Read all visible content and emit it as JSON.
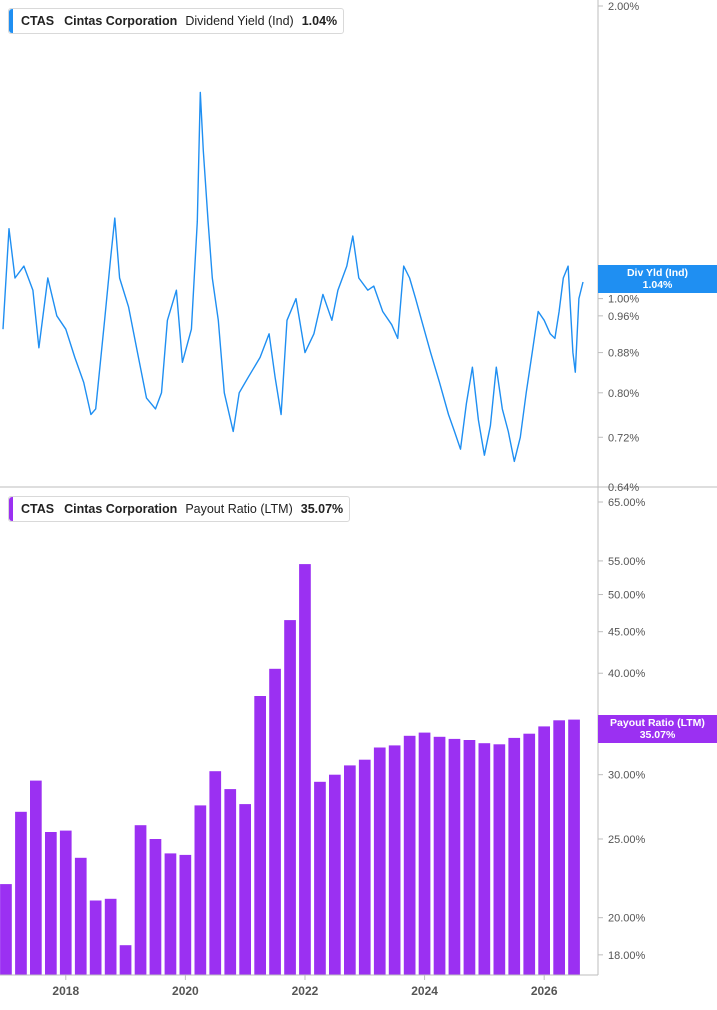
{
  "colors": {
    "line": "#1f8ff2",
    "bar": "#9b30f2",
    "axis": "#bdbdbd",
    "tick_text": "#555555",
    "flag_blue": "#1f8ff2",
    "flag_purple": "#9b30f2"
  },
  "top_panel": {
    "ticker": "CTAS",
    "company": "Cintas Corporation",
    "metric": "Dividend Yield (Ind)",
    "value": "1.04%",
    "flag_line1": "Div Yld (Ind)",
    "flag_line2": "1.04%"
  },
  "bottom_panel": {
    "ticker": "CTAS",
    "company": "Cintas Corporation",
    "metric": "Payout Ratio (LTM)",
    "value": "35.07%",
    "flag_line1": "Payout Ratio (LTM)",
    "flag_line2": "35.07%"
  },
  "chart_data": [
    {
      "type": "line",
      "title": "CTAS Cintas Corporation Dividend Yield (Ind) 1.04%",
      "yscale": "log",
      "ylim": [
        0.64,
        2.0
      ],
      "yticks": [
        2.0,
        1.0,
        0.96,
        0.88,
        0.8,
        0.72,
        0.64
      ],
      "ytick_labels": [
        "2.00%",
        "1.00%",
        "0.96%",
        "0.88%",
        "0.80%",
        "0.72%",
        "0.64%"
      ],
      "xlim": [
        2016.9,
        2026.9
      ],
      "series": [
        {
          "values": [
            [
              2016.95,
              0.93
            ],
            [
              2017.05,
              1.18
            ],
            [
              2017.15,
              1.05
            ],
            [
              2017.3,
              1.08
            ],
            [
              2017.45,
              1.02
            ],
            [
              2017.55,
              0.89
            ],
            [
              2017.7,
              1.05
            ],
            [
              2017.85,
              0.96
            ],
            [
              2018.0,
              0.93
            ],
            [
              2018.15,
              0.87
            ],
            [
              2018.3,
              0.82
            ],
            [
              2018.42,
              0.76
            ],
            [
              2018.5,
              0.77
            ],
            [
              2018.65,
              0.95
            ],
            [
              2018.75,
              1.1
            ],
            [
              2018.82,
              1.21
            ],
            [
              2018.9,
              1.05
            ],
            [
              2019.05,
              0.98
            ],
            [
              2019.2,
              0.88
            ],
            [
              2019.35,
              0.79
            ],
            [
              2019.5,
              0.77
            ],
            [
              2019.6,
              0.8
            ],
            [
              2019.7,
              0.95
            ],
            [
              2019.85,
              1.02
            ],
            [
              2019.95,
              0.86
            ],
            [
              2020.1,
              0.93
            ],
            [
              2020.2,
              1.2
            ],
            [
              2020.25,
              1.63
            ],
            [
              2020.3,
              1.42
            ],
            [
              2020.38,
              1.2
            ],
            [
              2020.45,
              1.05
            ],
            [
              2020.55,
              0.95
            ],
            [
              2020.65,
              0.8
            ],
            [
              2020.8,
              0.73
            ],
            [
              2020.9,
              0.8
            ],
            [
              2021.05,
              0.83
            ],
            [
              2021.25,
              0.87
            ],
            [
              2021.4,
              0.92
            ],
            [
              2021.5,
              0.83
            ],
            [
              2021.6,
              0.76
            ],
            [
              2021.7,
              0.95
            ],
            [
              2021.85,
              1.0
            ],
            [
              2022.0,
              0.88
            ],
            [
              2022.15,
              0.92
            ],
            [
              2022.3,
              1.01
            ],
            [
              2022.45,
              0.95
            ],
            [
              2022.55,
              1.02
            ],
            [
              2022.7,
              1.08
            ],
            [
              2022.8,
              1.16
            ],
            [
              2022.9,
              1.05
            ],
            [
              2023.05,
              1.02
            ],
            [
              2023.15,
              1.03
            ],
            [
              2023.3,
              0.97
            ],
            [
              2023.45,
              0.94
            ],
            [
              2023.55,
              0.91
            ],
            [
              2023.65,
              1.08
            ],
            [
              2023.75,
              1.05
            ],
            [
              2023.85,
              1.0
            ],
            [
              2023.95,
              0.95
            ],
            [
              2024.1,
              0.88
            ],
            [
              2024.25,
              0.82
            ],
            [
              2024.4,
              0.76
            ],
            [
              2024.5,
              0.73
            ],
            [
              2024.6,
              0.7
            ],
            [
              2024.7,
              0.78
            ],
            [
              2024.8,
              0.85
            ],
            [
              2024.9,
              0.75
            ],
            [
              2025.0,
              0.69
            ],
            [
              2025.1,
              0.74
            ],
            [
              2025.2,
              0.85
            ],
            [
              2025.3,
              0.77
            ],
            [
              2025.4,
              0.73
            ],
            [
              2025.5,
              0.68
            ],
            [
              2025.6,
              0.72
            ],
            [
              2025.7,
              0.8
            ],
            [
              2025.8,
              0.88
            ],
            [
              2025.9,
              0.97
            ],
            [
              2026.0,
              0.95
            ],
            [
              2026.1,
              0.92
            ],
            [
              2026.18,
              0.91
            ],
            [
              2026.25,
              0.97
            ],
            [
              2026.32,
              1.05
            ],
            [
              2026.4,
              1.08
            ],
            [
              2026.48,
              0.88
            ],
            [
              2026.52,
              0.84
            ],
            [
              2026.58,
              1.0
            ],
            [
              2026.65,
              1.04
            ]
          ]
        }
      ]
    },
    {
      "type": "bar",
      "title": "CTAS Cintas Corporation Payout Ratio (LTM) 35.07%",
      "yscale": "log",
      "ylim": [
        17.0,
        65.0
      ],
      "yticks": [
        65,
        55,
        50,
        45,
        40,
        30,
        25,
        20,
        18
      ],
      "ytick_labels": [
        "65.00%",
        "55.00%",
        "50.00%",
        "45.00%",
        "40.00%",
        "30.00%",
        "25.00%",
        "20.00%",
        "18.00%"
      ],
      "xlim": [
        2016.9,
        2026.9
      ],
      "xticks": [
        2018,
        2020,
        2022,
        2024,
        2026
      ],
      "xtick_labels": [
        "2018",
        "2020",
        "2022",
        "2024",
        "2026"
      ],
      "x": [
        2017.0,
        2017.25,
        2017.5,
        2017.75,
        2018.0,
        2018.25,
        2018.5,
        2018.75,
        2019.0,
        2019.25,
        2019.5,
        2019.75,
        2020.0,
        2020.25,
        2020.5,
        2020.75,
        2021.0,
        2021.25,
        2021.5,
        2021.75,
        2022.0,
        2022.25,
        2022.5,
        2022.75,
        2023.0,
        2023.25,
        2023.5,
        2023.75,
        2024.0,
        2024.25,
        2024.5,
        2024.75,
        2025.0,
        2025.25,
        2025.5,
        2025.75,
        2026.0,
        2026.25,
        2026.5
      ],
      "values": [
        22.0,
        27.0,
        29.5,
        25.5,
        25.6,
        23.7,
        21.0,
        21.1,
        18.5,
        26.0,
        25.0,
        24.0,
        23.9,
        27.5,
        30.3,
        28.8,
        27.6,
        37.5,
        40.5,
        46.5,
        54.5,
        29.4,
        30.0,
        30.8,
        31.3,
        32.4,
        32.6,
        33.5,
        33.8,
        33.4,
        33.2,
        33.1,
        32.8,
        32.7,
        33.3,
        33.7,
        34.4,
        35.0,
        35.07
      ]
    }
  ]
}
